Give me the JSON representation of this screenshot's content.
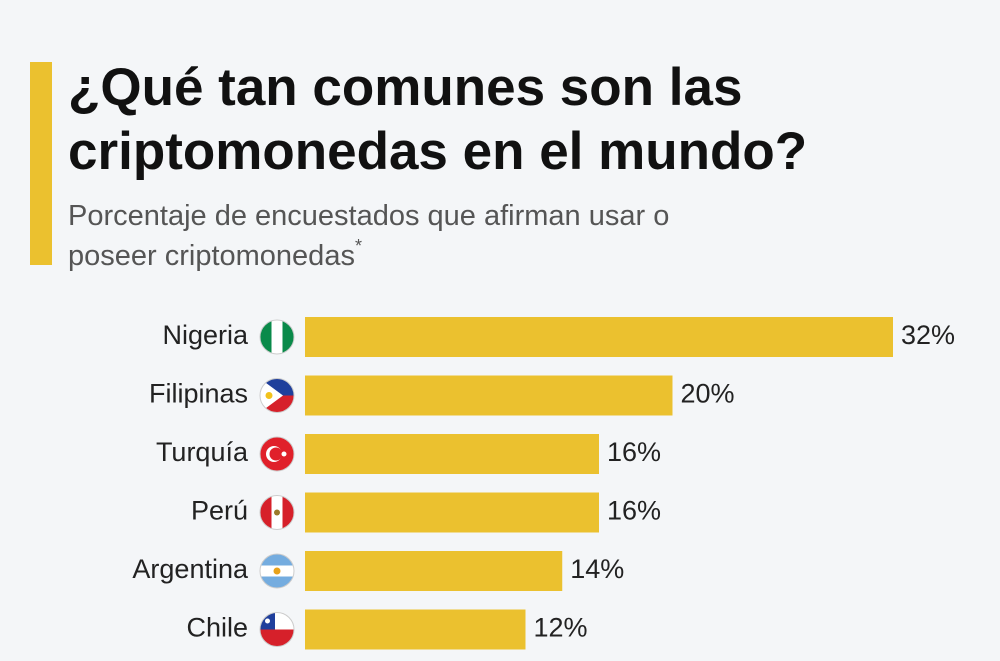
{
  "chart_data": {
    "type": "bar",
    "orientation": "horizontal",
    "title": "¿Qué tan comunes son las criptomonedas en el mundo?",
    "subtitle": "Porcentaje de encuestados que afirman usar o poseer criptomonedas",
    "footnote_marker": "*",
    "categories": [
      "Nigeria",
      "Filipinas",
      "Turquía",
      "Perú",
      "Argentina",
      "Chile"
    ],
    "values": [
      32,
      20,
      16,
      16,
      14,
      12
    ],
    "value_labels": [
      "32%",
      "20%",
      "16%",
      "16%",
      "14%",
      "12%"
    ],
    "color": "#ebc12f"
  }
}
